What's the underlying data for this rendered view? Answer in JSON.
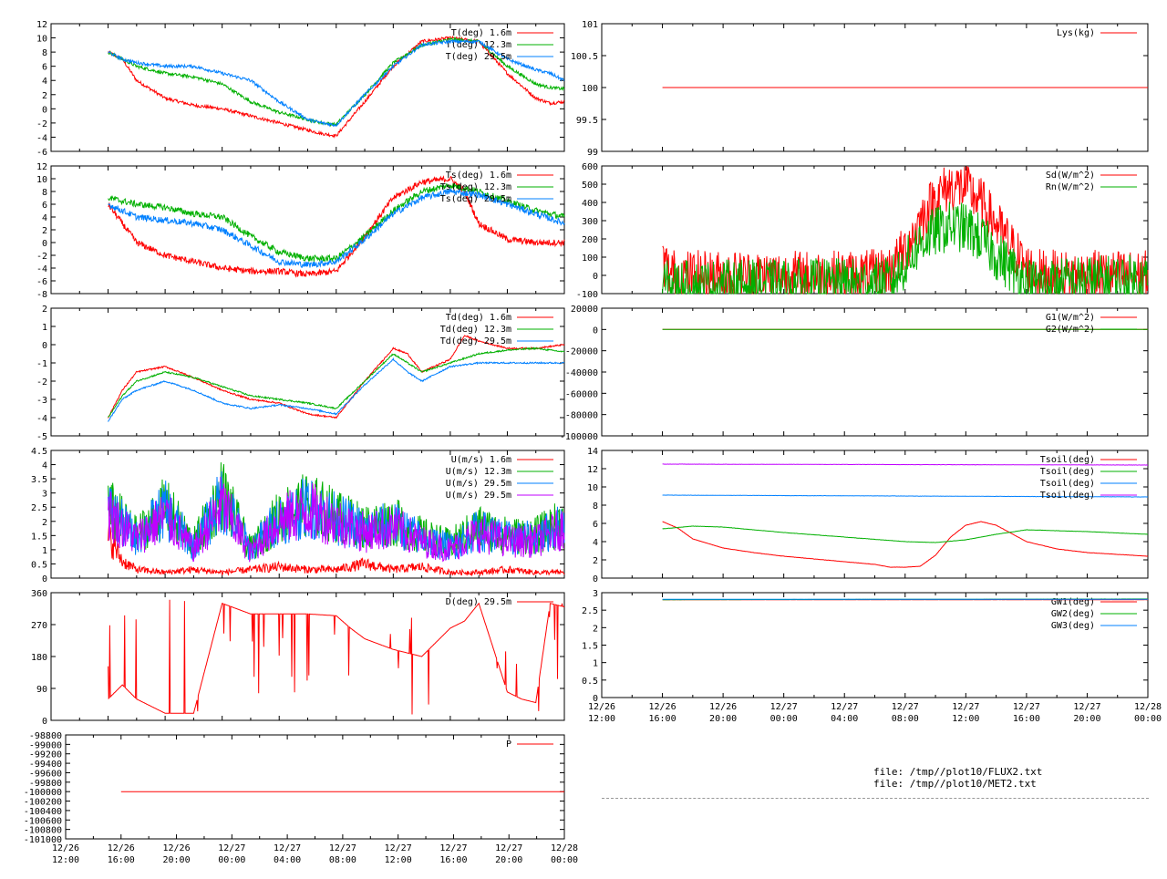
{
  "colors": {
    "red": "#ff0000",
    "green": "#00b000",
    "blue": "#0080ff",
    "purple": "#c000ff"
  },
  "footer": {
    "file1": "file: /tmp//plot10/FLUX2.txt",
    "file2": "file: /tmp//plot10/MET2.txt"
  },
  "x_axis": {
    "tick_labels": [
      [
        "12/26",
        "12:00"
      ],
      [
        "12/26",
        "16:00"
      ],
      [
        "12/26",
        "20:00"
      ],
      [
        "12/27",
        "00:00"
      ],
      [
        "12/27",
        "04:00"
      ],
      [
        "12/27",
        "08:00"
      ],
      [
        "12/27",
        "12:00"
      ],
      [
        "12/27",
        "16:00"
      ],
      [
        "12/27",
        "20:00"
      ],
      [
        "12/28",
        "00:00"
      ]
    ],
    "range_hours": [
      0,
      36
    ]
  },
  "chart_data": [
    {
      "type": "line",
      "ylim": [
        -6,
        12
      ],
      "yticks": [
        -6,
        -4,
        -2,
        0,
        2,
        4,
        6,
        8,
        10,
        12
      ],
      "series": [
        {
          "name": "T(deg)  1.6m",
          "color": "red",
          "x": [
            4,
            5,
            6,
            8,
            10,
            12,
            14,
            16,
            18,
            19,
            20,
            22,
            24,
            26,
            28,
            30,
            32,
            34,
            35,
            36
          ],
          "y": [
            8,
            7,
            4,
            1.5,
            0.5,
            0,
            -1,
            -2,
            -3,
            -3.5,
            -3.8,
            1,
            6,
            9.5,
            10,
            9.5,
            5,
            1.5,
            0.8,
            1
          ]
        },
        {
          "name": "T(deg) 12.3m",
          "color": "green",
          "x": [
            4,
            5,
            6,
            8,
            10,
            12,
            14,
            16,
            18,
            19,
            20,
            22,
            24,
            26,
            28,
            30,
            32,
            34,
            35,
            36
          ],
          "y": [
            8,
            7,
            6,
            5,
            4.5,
            3.5,
            1,
            -0.5,
            -1.5,
            -2,
            -2.2,
            2,
            6.5,
            9,
            9.8,
            9.5,
            6,
            3.5,
            3,
            2.8
          ]
        },
        {
          "name": "T(deg) 29.5m",
          "color": "blue",
          "x": [
            4,
            5,
            6,
            8,
            10,
            12,
            14,
            16,
            18,
            19,
            20,
            22,
            24,
            26,
            28,
            30,
            32,
            34,
            35,
            36
          ],
          "y": [
            8,
            7,
            6.5,
            6,
            6,
            5,
            4,
            1,
            -1.5,
            -2,
            -2.3,
            2,
            6,
            9,
            9.5,
            9.5,
            7,
            5.5,
            5,
            4
          ]
        }
      ]
    },
    {
      "type": "line",
      "ylim": [
        -8,
        12
      ],
      "yticks": [
        -8,
        -6,
        -4,
        -2,
        0,
        2,
        4,
        6,
        8,
        10,
        12
      ],
      "series": [
        {
          "name": "Ts(deg)  1.6m",
          "color": "red",
          "x": [
            4,
            5,
            6,
            8,
            10,
            12,
            14,
            16,
            18,
            20,
            22,
            24,
            26,
            28,
            29,
            30,
            32,
            34,
            36
          ],
          "y": [
            6,
            3,
            0,
            -2,
            -3,
            -4,
            -4.5,
            -4.5,
            -5,
            -4.5,
            1,
            7,
            9.5,
            10,
            8,
            3,
            0.5,
            0,
            0
          ]
        },
        {
          "name": "Ts(deg) 12.3m",
          "color": "green",
          "x": [
            4,
            5,
            6,
            8,
            10,
            12,
            14,
            16,
            18,
            20,
            22,
            24,
            26,
            28,
            30,
            32,
            34,
            36
          ],
          "y": [
            7,
            6.5,
            6,
            5.5,
            4.5,
            4,
            1,
            -1.5,
            -2.5,
            -2.5,
            1,
            5,
            8,
            9,
            8,
            6.5,
            5,
            4
          ]
        },
        {
          "name": "Ts(deg) 29.5m",
          "color": "blue",
          "x": [
            4,
            5,
            6,
            8,
            10,
            12,
            14,
            16,
            18,
            20,
            22,
            24,
            26,
            28,
            30,
            32,
            34,
            36
          ],
          "y": [
            6,
            5,
            4,
            3.5,
            3,
            2,
            -0.5,
            -3,
            -3.5,
            -3,
            0.5,
            4.5,
            7,
            8,
            7.5,
            6,
            4.5,
            3
          ]
        }
      ]
    },
    {
      "type": "line",
      "ylim": [
        -5,
        2
      ],
      "yticks": [
        -5,
        -4,
        -3,
        -2,
        -1,
        0,
        1,
        2
      ],
      "series": [
        {
          "name": "Td(deg)  1.6m",
          "color": "red",
          "x": [
            4,
            5,
            6,
            8,
            10,
            12,
            14,
            16,
            18,
            20,
            22,
            24,
            25,
            26,
            28,
            29,
            30,
            32,
            34,
            36
          ],
          "y": [
            -4,
            -2.5,
            -1.5,
            -1.2,
            -1.8,
            -2.5,
            -3,
            -3.2,
            -3.8,
            -4,
            -2,
            -0.2,
            -0.5,
            -1.5,
            -0.8,
            0.5,
            0.2,
            -0.2,
            -0.2,
            0
          ]
        },
        {
          "name": "Td(deg) 12.3m",
          "color": "green",
          "x": [
            4,
            5,
            6,
            8,
            10,
            12,
            14,
            16,
            18,
            20,
            22,
            24,
            25,
            26,
            28,
            30,
            32,
            34,
            36
          ],
          "y": [
            -4,
            -2.8,
            -2,
            -1.5,
            -1.8,
            -2.3,
            -2.8,
            -3,
            -3.2,
            -3.5,
            -2,
            -0.5,
            -1,
            -1.5,
            -1,
            -0.5,
            -0.3,
            -0.2,
            -0.4
          ]
        },
        {
          "name": "Td(deg) 29.5m",
          "color": "blue",
          "x": [
            4,
            5,
            6,
            8,
            10,
            12,
            14,
            16,
            18,
            20,
            22,
            24,
            25,
            26,
            28,
            30,
            32,
            34,
            36
          ],
          "y": [
            -4.2,
            -3,
            -2.5,
            -2,
            -2.5,
            -3.2,
            -3.5,
            -3.3,
            -3.5,
            -3.8,
            -2.2,
            -0.8,
            -1.5,
            -2,
            -1.2,
            -1,
            -1,
            -1,
            -1
          ]
        }
      ]
    },
    {
      "type": "line",
      "ylim": [
        0,
        4.5
      ],
      "yticks": [
        0,
        0.5,
        1,
        1.5,
        2,
        2.5,
        3,
        3.5,
        4,
        4.5
      ],
      "ytick_labels": [
        "0",
        "0.5",
        "1",
        "1.5",
        "2",
        "2.5",
        "3",
        "3.5",
        "4",
        "4.5"
      ],
      "series": [
        {
          "name": "U(m/s)  1.6m",
          "color": "red",
          "x": [
            4,
            5,
            6,
            8,
            10,
            12,
            14,
            16,
            18,
            20,
            22,
            24,
            26,
            28,
            30,
            32,
            34,
            36
          ],
          "y": [
            1.5,
            0.6,
            0.3,
            0.2,
            0.3,
            0.2,
            0.3,
            0.4,
            0.3,
            0.3,
            0.5,
            0.3,
            0.4,
            0.2,
            0.2,
            0.3,
            0.2,
            0.2
          ]
        },
        {
          "name": "U(m/s) 12.3m",
          "color": "green",
          "x": [
            4,
            5,
            6,
            8,
            10,
            12,
            14,
            16,
            18,
            20,
            22,
            24,
            26,
            28,
            30,
            32,
            34,
            36
          ],
          "y": [
            2.5,
            2,
            1.5,
            2.5,
            1.2,
            3,
            1,
            2.2,
            2.6,
            2.2,
            1.8,
            2,
            1.5,
            1.2,
            1.8,
            1.5,
            1.5,
            2
          ]
        },
        {
          "name": "U(m/s) 29.5m",
          "color": "blue",
          "x": [
            4,
            5,
            6,
            8,
            10,
            12,
            14,
            16,
            18,
            20,
            22,
            24,
            26,
            28,
            30,
            32,
            34,
            36
          ],
          "y": [
            2.4,
            1.9,
            1.4,
            2.4,
            1.1,
            2.8,
            1,
            2.1,
            2.5,
            2.1,
            1.7,
            1.9,
            1.4,
            1.1,
            1.7,
            1.4,
            1.4,
            1.9
          ]
        },
        {
          "name": "U(m/s) 29.5m",
          "color": "purple",
          "x": [
            4,
            5,
            6,
            8,
            10,
            12,
            14,
            16,
            18,
            20,
            22,
            24,
            26,
            28,
            30,
            32,
            34,
            36
          ],
          "y": [
            2.3,
            1.8,
            1.4,
            2.2,
            1,
            2.6,
            0.9,
            2,
            2.4,
            2,
            1.6,
            1.8,
            1.3,
            1,
            1.6,
            1.3,
            1.3,
            1.8
          ]
        }
      ]
    },
    {
      "type": "line",
      "ylim": [
        0,
        360
      ],
      "yticks": [
        0,
        90,
        180,
        270,
        360
      ],
      "series": [
        {
          "name": "D(deg) 29.5m",
          "color": "red",
          "x": [
            4,
            5,
            6,
            7,
            8,
            10,
            12,
            14,
            16,
            18,
            20,
            21,
            22,
            24,
            26,
            28,
            29,
            30,
            32,
            33,
            34,
            35,
            36
          ],
          "y": [
            60,
            100,
            60,
            40,
            20,
            20,
            330,
            300,
            300,
            300,
            295,
            260,
            230,
            200,
            180,
            260,
            280,
            330,
            80,
            60,
            50,
            330,
            320
          ]
        }
      ]
    },
    {
      "type": "line",
      "ylim": [
        -101000,
        -98800
      ],
      "yticks": [
        -101000,
        -100800,
        -100600,
        -100400,
        -100200,
        -100000,
        -99800,
        -99600,
        -99400,
        -99200,
        -99000,
        -98800
      ],
      "series": [
        {
          "name": "P",
          "color": "red",
          "x": [
            4,
            36
          ],
          "y": [
            -100000,
            -100000
          ]
        }
      ]
    },
    {
      "type": "line",
      "ylim": [
        99,
        101
      ],
      "yticks": [
        99,
        99.5,
        100,
        100.5,
        101
      ],
      "series": [
        {
          "name": "Lys(kg)",
          "color": "red",
          "x": [
            4,
            36
          ],
          "y": [
            100,
            100
          ]
        }
      ]
    },
    {
      "type": "line",
      "ylim": [
        -100,
        600
      ],
      "yticks": [
        -100,
        0,
        100,
        200,
        300,
        400,
        500,
        600
      ],
      "series": [
        {
          "name": "Sd(W/m^2)",
          "color": "red",
          "x": [
            4,
            4.5,
            6,
            8,
            10,
            12,
            14,
            16,
            18,
            19,
            20,
            21,
            22,
            23,
            24,
            25,
            26,
            27,
            28,
            29,
            30,
            32,
            34,
            36
          ],
          "y": [
            80,
            10,
            0,
            0,
            0,
            0,
            0,
            0,
            5,
            30,
            140,
            300,
            430,
            490,
            480,
            400,
            280,
            160,
            40,
            5,
            0,
            0,
            0,
            0
          ]
        },
        {
          "name": "Rn(W/m^2)",
          "color": "green",
          "x": [
            4,
            4.5,
            6,
            8,
            10,
            12,
            14,
            16,
            18,
            19,
            20,
            21,
            22,
            23,
            24,
            25,
            26,
            27,
            28,
            29,
            30,
            32,
            34,
            36
          ],
          "y": [
            -50,
            -55,
            -55,
            -50,
            -50,
            -50,
            -45,
            -45,
            -40,
            -40,
            60,
            180,
            240,
            270,
            260,
            200,
            110,
            40,
            -40,
            -45,
            -40,
            -30,
            -25,
            -20
          ]
        }
      ]
    },
    {
      "type": "line",
      "ylim": [
        -100000,
        20000
      ],
      "yticks": [
        -100000,
        -80000,
        -60000,
        -40000,
        -20000,
        0,
        20000
      ],
      "series": [
        {
          "name": "G1(W/m^2)",
          "color": "red",
          "x": [
            4,
            36
          ],
          "y": [
            0,
            0
          ]
        },
        {
          "name": "G2(W/m^2)",
          "color": "green",
          "x": [
            4,
            36
          ],
          "y": [
            0,
            0
          ]
        }
      ]
    },
    {
      "type": "line",
      "ylim": [
        0,
        14
      ],
      "yticks": [
        0,
        2,
        4,
        6,
        8,
        10,
        12,
        14
      ],
      "series": [
        {
          "name": "Tsoil(deg)",
          "color": "red",
          "x": [
            4,
            5,
            6,
            8,
            10,
            12,
            14,
            16,
            18,
            19,
            20,
            21,
            22,
            23,
            24,
            25,
            26,
            28,
            30,
            32,
            34,
            36
          ],
          "y": [
            6.2,
            5.5,
            4.3,
            3.3,
            2.8,
            2.4,
            2.1,
            1.8,
            1.5,
            1.2,
            1.2,
            1.3,
            2.5,
            4.5,
            5.8,
            6.2,
            5.8,
            4,
            3.2,
            2.8,
            2.6,
            2.4
          ]
        },
        {
          "name": "Tsoil(deg)",
          "color": "green",
          "x": [
            4,
            6,
            8,
            12,
            16,
            20,
            22,
            24,
            26,
            28,
            32,
            36
          ],
          "y": [
            5.4,
            5.7,
            5.6,
            5,
            4.5,
            4,
            3.9,
            4.2,
            4.8,
            5.3,
            5.1,
            4.8
          ]
        },
        {
          "name": "Tsoil(deg)",
          "color": "blue",
          "x": [
            4,
            36
          ],
          "y": [
            9.1,
            8.9
          ]
        },
        {
          "name": "Tsoil(deg)",
          "color": "purple",
          "x": [
            4,
            36
          ],
          "y": [
            12.5,
            12.4
          ]
        }
      ]
    },
    {
      "type": "line",
      "ylim": [
        0,
        3
      ],
      "yticks": [
        0,
        0.5,
        1,
        1.5,
        2,
        2.5,
        3
      ],
      "ytick_labels": [
        "0",
        "0.5",
        "1",
        "1.5",
        "2",
        "2.5",
        "3"
      ],
      "series": [
        {
          "name": "GW1(deg)",
          "color": "red",
          "x": [
            4,
            36
          ],
          "y": [
            2.8,
            2.8
          ]
        },
        {
          "name": "GW2(deg)",
          "color": "green",
          "x": [
            4,
            36
          ],
          "y": [
            2.8,
            2.82
          ]
        },
        {
          "name": "GW3(deg)",
          "color": "blue",
          "x": [
            4,
            36
          ],
          "y": [
            2.81,
            2.81
          ]
        }
      ]
    }
  ]
}
